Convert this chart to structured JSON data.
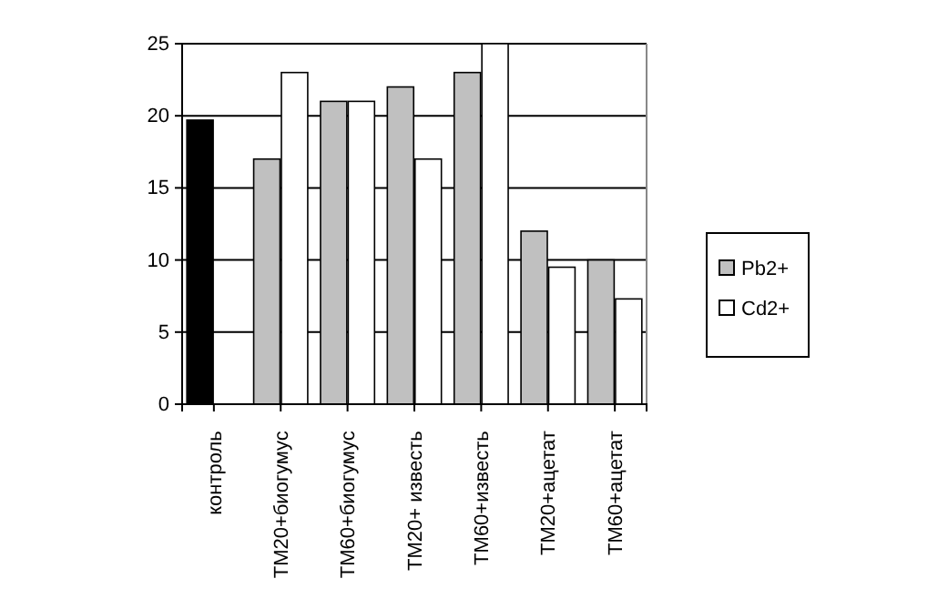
{
  "chart_data": {
    "type": "bar",
    "categories": [
      "контроль",
      "ТМ20+биогумус",
      "ТМ60+биогумус",
      "ТМ20+ известь",
      "ТМ60+известь",
      "ТМ20+ацетат",
      "ТМ60+ацетат"
    ],
    "series": [
      {
        "name": "Pb2+",
        "color": "#c0c0c0",
        "colors": [
          "#000000",
          "#c0c0c0",
          "#c0c0c0",
          "#c0c0c0",
          "#c0c0c0",
          "#c0c0c0",
          "#c0c0c0"
        ],
        "values": [
          19.7,
          17,
          21,
          22,
          23,
          12,
          10
        ]
      },
      {
        "name": "Cd2+",
        "color": "#ffffff",
        "values": [
          null,
          23,
          21,
          17,
          25,
          9.5,
          7.3
        ]
      }
    ],
    "ylim": [
      0,
      25
    ],
    "yticks": [
      0,
      5,
      10,
      15,
      20,
      25
    ],
    "grid": "y",
    "legend": "right"
  }
}
